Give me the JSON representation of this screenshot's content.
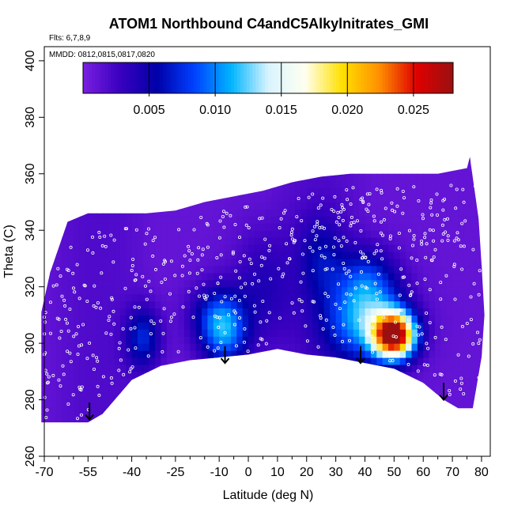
{
  "chart_data": {
    "type": "heatmap",
    "title": "ATOM1 Northbound C4andC5Alkylnitrates_GMI",
    "flights_note": "Flts: 6,7,8,9",
    "dates_note": "MMDD: 0812,0815,0817,0820",
    "xlabel": "Latitude (deg N)",
    "ylabel": "Theta (C)",
    "xlim": [
      -70,
      83
    ],
    "ylim": [
      260,
      405
    ],
    "x_ticks": [
      -70,
      -55,
      -40,
      -25,
      -10,
      0,
      10,
      20,
      30,
      40,
      50,
      60,
      70,
      80
    ],
    "x_tick_labels": [
      "-70",
      "-55",
      "-40",
      "-25",
      "-10",
      "0",
      "10",
      "20",
      "30",
      "40",
      "50",
      "60",
      "70",
      "80"
    ],
    "y_ticks": [
      260,
      280,
      300,
      320,
      340,
      360,
      380,
      400
    ],
    "y_tick_labels": [
      "260",
      "280",
      "300",
      "320",
      "340",
      "360",
      "380",
      "400"
    ],
    "colorbar": {
      "range": [
        0,
        0.028
      ],
      "ticks": [
        0.005,
        0.01,
        0.015,
        0.02,
        0.025
      ],
      "tick_labels": [
        "0.005",
        "0.010",
        "0.015",
        "0.020",
        "0.025"
      ],
      "colors": [
        "#7a1fe0",
        "#3a00c0",
        "#0000a8",
        "#0040ff",
        "#00b4ff",
        "#d8f4ff",
        "#fffff0",
        "#ffe000",
        "#ff9000",
        "#e00000",
        "#9a1010"
      ]
    },
    "field": {
      "lower_boundary": [
        [
          -71,
          272
        ],
        [
          -62,
          272
        ],
        [
          -55,
          272
        ],
        [
          -50,
          275
        ],
        [
          -40,
          287
        ],
        [
          -30,
          292
        ],
        [
          -20,
          294
        ],
        [
          -10,
          295
        ],
        [
          0,
          296
        ],
        [
          10,
          298
        ],
        [
          20,
          296
        ],
        [
          30,
          295
        ],
        [
          40,
          293
        ],
        [
          50,
          291
        ],
        [
          60,
          286
        ],
        [
          67,
          280
        ],
        [
          72,
          277
        ],
        [
          76,
          277
        ]
      ],
      "upper_boundary": [
        [
          -71,
          311
        ],
        [
          -68,
          325
        ],
        [
          -62,
          343
        ],
        [
          -55,
          346
        ],
        [
          -45,
          346
        ],
        [
          -35,
          346
        ],
        [
          -25,
          347
        ],
        [
          -15,
          350
        ],
        [
          -5,
          352
        ],
        [
          5,
          354
        ],
        [
          15,
          357
        ],
        [
          25,
          359
        ],
        [
          35,
          360
        ],
        [
          45,
          360
        ],
        [
          55,
          360
        ],
        [
          65,
          360
        ],
        [
          70,
          361
        ],
        [
          75,
          362
        ],
        [
          76,
          366
        ],
        [
          79,
          344
        ],
        [
          80,
          328
        ],
        [
          81,
          310
        ],
        [
          80,
          295
        ],
        [
          77,
          277
        ]
      ],
      "background_value": 0.001,
      "features": [
        {
          "lat": -8,
          "theta": 303,
          "value": 0.007,
          "w": 8,
          "h": 12
        },
        {
          "lat": -36,
          "theta": 302,
          "value": 0.006,
          "w": 6,
          "h": 11
        },
        {
          "lat": -11,
          "theta": 310,
          "value": 0.005,
          "w": 9,
          "h": 11
        },
        {
          "lat": 40,
          "theta": 307,
          "value": 0.009,
          "w": 14,
          "h": 14
        },
        {
          "lat": 41,
          "theta": 322,
          "value": 0.006,
          "w": 10,
          "h": 12
        },
        {
          "lat": 50,
          "theta": 303,
          "value": 0.026,
          "w": 7,
          "h": 8
        },
        {
          "lat": 25,
          "theta": 330,
          "value": 0.004,
          "w": 8,
          "h": 15
        },
        {
          "lat": 5,
          "theta": 320,
          "value": 0.003,
          "w": 10,
          "h": 20
        }
      ]
    },
    "arrows": [
      [
        -54.5,
        279
      ],
      [
        -8,
        299
      ],
      [
        38.5,
        299
      ],
      [
        67,
        286
      ]
    ]
  }
}
